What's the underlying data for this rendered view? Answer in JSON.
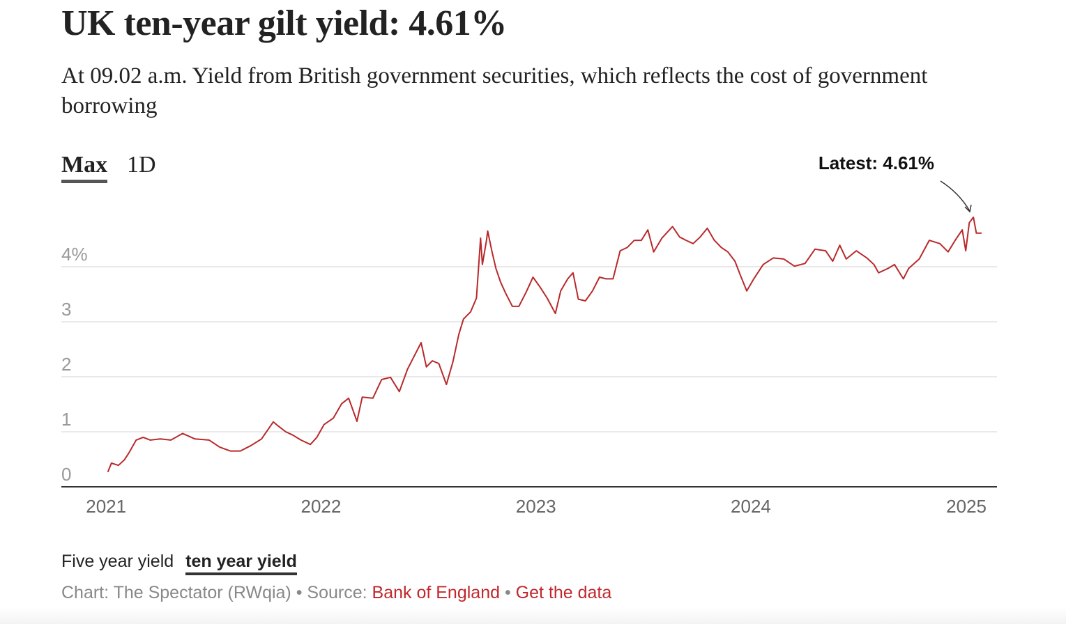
{
  "header": {
    "title": "UK ten-year gilt yield: 4.61%",
    "subtitle": "At 09.02 a.m. Yield from British government securities, which reflects the cost of government borrowing"
  },
  "tabs": [
    {
      "label": "Max",
      "active": true
    },
    {
      "label": "1D",
      "active": false
    }
  ],
  "series_toggle": [
    {
      "label": "Five year yield",
      "active": false
    },
    {
      "label": "ten year yield",
      "active": true
    }
  ],
  "footer": {
    "chart_credit": "Chart: The Spectator (RWqia)",
    "sep": " • ",
    "source_prefix": "Source: ",
    "source_link": "Bank of England",
    "data_link": "Get the data"
  },
  "colors": {
    "line": "#b8292b",
    "link": "#c0282d",
    "grid": "#e2e2e2"
  },
  "chart_data": {
    "type": "line",
    "title": "UK ten-year gilt yield: 4.61%",
    "xlabel": "",
    "ylabel": "",
    "xlim": [
      "2020-10-17",
      "2025-02-22"
    ],
    "ylim": [
      0,
      4.9
    ],
    "grid": true,
    "y_ticks": [
      {
        "value": 0,
        "label": "0"
      },
      {
        "value": 1,
        "label": "1"
      },
      {
        "value": 2,
        "label": "2"
      },
      {
        "value": 3,
        "label": "3"
      },
      {
        "value": 4,
        "label": "4%"
      }
    ],
    "x_ticks": [
      {
        "value": "2021-01-01",
        "label": "2021"
      },
      {
        "value": "2022-01-01",
        "label": "2022"
      },
      {
        "value": "2023-01-01",
        "label": "2023"
      },
      {
        "value": "2024-01-01",
        "label": "2024"
      },
      {
        "value": "2025-01-01",
        "label": "2025"
      }
    ],
    "annotation": {
      "label": "Latest: 4.61%",
      "value": 4.61
    },
    "series": [
      {
        "x": [
          "2021-01-04",
          "2021-01-10",
          "2021-01-22",
          "2021-02-01",
          "2021-02-09",
          "2021-02-21",
          "2021-03-05",
          "2021-03-17",
          "2021-04-03",
          "2021-04-21",
          "2021-05-11",
          "2021-06-01",
          "2021-06-25",
          "2021-07-13",
          "2021-07-31",
          "2021-08-17",
          "2021-09-04",
          "2021-09-22",
          "2021-10-12",
          "2021-10-21",
          "2021-11-02",
          "2021-11-14",
          "2021-11-28",
          "2021-12-14",
          "2021-12-25",
          "2022-01-06",
          "2022-01-22",
          "2022-02-05",
          "2022-02-17",
          "2022-03-03",
          "2022-03-12",
          "2022-03-30",
          "2022-04-14",
          "2022-04-29",
          "2022-05-14",
          "2022-05-28",
          "2022-06-09",
          "2022-06-20",
          "2022-06-29",
          "2022-07-09",
          "2022-07-20",
          "2022-08-02",
          "2022-08-13",
          "2022-08-23",
          "2022-08-31",
          "2022-09-12",
          "2022-09-22",
          "2022-09-29",
          "2022-10-02",
          "2022-10-09",
          "2022-10-11",
          "2022-10-18",
          "2022-10-25",
          "2022-11-02",
          "2022-11-10",
          "2022-11-22",
          "2022-12-03",
          "2022-12-15",
          "2022-12-27",
          "2023-01-08",
          "2023-01-20",
          "2023-02-03",
          "2023-02-12",
          "2023-02-24",
          "2023-03-05",
          "2023-03-14",
          "2023-03-26",
          "2023-04-07",
          "2023-04-19",
          "2023-04-30",
          "2023-05-12",
          "2023-05-24",
          "2023-06-05",
          "2023-06-17",
          "2023-06-29",
          "2023-07-10",
          "2023-07-20",
          "2023-08-03",
          "2023-08-21",
          "2023-09-02",
          "2023-09-13",
          "2023-09-25",
          "2023-10-07",
          "2023-10-19",
          "2023-10-31",
          "2023-11-12",
          "2023-11-23",
          "2023-12-05",
          "2023-12-14",
          "2023-12-25",
          "2024-01-06",
          "2024-01-22",
          "2024-02-08",
          "2024-02-26",
          "2024-03-15",
          "2024-04-02",
          "2024-04-19",
          "2024-05-07",
          "2024-05-19",
          "2024-05-31",
          "2024-06-11",
          "2024-06-28",
          "2024-07-16",
          "2024-07-28",
          "2024-08-05",
          "2024-08-21",
          "2024-09-01",
          "2024-09-16",
          "2024-09-25",
          "2024-10-13",
          "2024-10-30",
          "2024-11-17",
          "2024-12-01",
          "2024-12-13",
          "2024-12-25",
          "2024-12-31",
          "2025-01-06",
          "2025-01-13",
          "2025-01-18",
          "2025-01-27"
        ],
        "y": [
          0.27,
          0.43,
          0.39,
          0.49,
          0.62,
          0.85,
          0.9,
          0.85,
          0.87,
          0.85,
          0.97,
          0.87,
          0.85,
          0.72,
          0.65,
          0.65,
          0.75,
          0.87,
          1.18,
          1.1,
          1.0,
          0.94,
          0.85,
          0.77,
          0.9,
          1.13,
          1.25,
          1.51,
          1.61,
          1.19,
          1.63,
          1.61,
          1.95,
          1.99,
          1.73,
          2.14,
          2.39,
          2.62,
          2.18,
          2.29,
          2.24,
          1.86,
          2.27,
          2.77,
          3.05,
          3.18,
          3.43,
          4.52,
          4.04,
          4.48,
          4.65,
          4.29,
          3.97,
          3.72,
          3.53,
          3.28,
          3.28,
          3.53,
          3.81,
          3.63,
          3.43,
          3.15,
          3.56,
          3.78,
          3.89,
          3.41,
          3.38,
          3.56,
          3.81,
          3.78,
          3.78,
          4.29,
          4.35,
          4.48,
          4.48,
          4.67,
          4.27,
          4.52,
          4.73,
          4.54,
          4.48,
          4.42,
          4.54,
          4.7,
          4.48,
          4.35,
          4.27,
          4.1,
          3.85,
          3.56,
          3.78,
          4.04,
          4.16,
          4.14,
          4.01,
          4.06,
          4.32,
          4.29,
          4.1,
          4.39,
          4.14,
          4.29,
          4.16,
          4.04,
          3.89,
          3.97,
          4.04,
          3.78,
          3.97,
          4.14,
          4.48,
          4.42,
          4.27,
          4.48,
          4.67,
          4.29,
          4.8,
          4.9,
          4.61,
          4.61
        ]
      }
    ]
  }
}
